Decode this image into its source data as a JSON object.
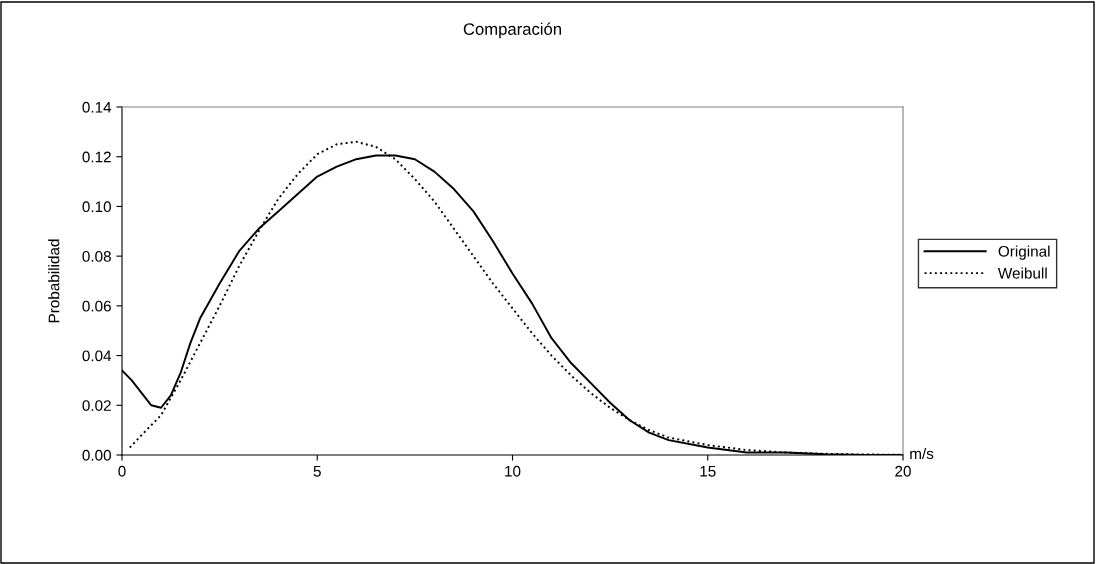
{
  "chart_data": {
    "type": "line",
    "title": "Comparación",
    "xlabel": "m/s",
    "ylabel": "Probabilidad",
    "xlim": [
      0,
      20
    ],
    "xticks": [
      0,
      5,
      10,
      15,
      20
    ],
    "ylim": [
      0,
      0.14
    ],
    "yticks": [
      {
        "value": 0,
        "label": "0.00"
      },
      {
        "value": 0.02,
        "label": "0.02"
      },
      {
        "value": 0.04,
        "label": "0.04"
      },
      {
        "value": 0.06,
        "label": "0.06"
      },
      {
        "value": 0.08,
        "label": "0.08"
      },
      {
        "value": 0.1,
        "label": "0.10"
      },
      {
        "value": 0.12,
        "label": "0.12"
      },
      {
        "value": 0.14,
        "label": "0.14"
      }
    ],
    "grid": false,
    "legend": "right",
    "series": [
      {
        "name": "Original",
        "color": "#000000",
        "line_style": "solid",
        "x": [
          0,
          0.25,
          0.5,
          0.75,
          1,
          1.25,
          1.5,
          1.75,
          2,
          2.5,
          3,
          3.5,
          4,
          4.5,
          5,
          5.5,
          6,
          6.5,
          7,
          7.5,
          8,
          8.5,
          9,
          9.5,
          10,
          10.5,
          11,
          11.5,
          12,
          12.5,
          13,
          13.5,
          14,
          15,
          16,
          17,
          18,
          19,
          20
        ],
        "values": [
          0.034,
          0.03,
          0.025,
          0.02,
          0.019,
          0.024,
          0.033,
          0.045,
          0.055,
          0.069,
          0.082,
          0.091,
          0.098,
          0.105,
          0.112,
          0.116,
          0.119,
          0.1205,
          0.1205,
          0.119,
          0.114,
          0.107,
          0.098,
          0.086,
          0.073,
          0.061,
          0.047,
          0.037,
          0.029,
          0.021,
          0.014,
          0.009,
          0.006,
          0.003,
          0.001,
          0.001,
          0.0003,
          0,
          0
        ]
      },
      {
        "name": "Weibull",
        "color": "#000000",
        "line_style": "dotted",
        "x": [
          0.2,
          0.5,
          1,
          1.5,
          2,
          2.5,
          3,
          3.5,
          4,
          4.5,
          5,
          5.5,
          6,
          6.5,
          7,
          7.5,
          8,
          8.5,
          9,
          9.5,
          10,
          10.5,
          11,
          11.5,
          12,
          12.5,
          13,
          13.5,
          14,
          15,
          16,
          17,
          18,
          19,
          20
        ],
        "values": [
          0.003,
          0.008,
          0.016,
          0.03,
          0.045,
          0.06,
          0.076,
          0.09,
          0.103,
          0.113,
          0.121,
          0.125,
          0.126,
          0.124,
          0.119,
          0.111,
          0.102,
          0.091,
          0.08,
          0.069,
          0.059,
          0.049,
          0.04,
          0.032,
          0.025,
          0.019,
          0.014,
          0.01,
          0.007,
          0.004,
          0.002,
          0.001,
          0.0005,
          0.0002,
          0.0001
        ]
      }
    ]
  }
}
